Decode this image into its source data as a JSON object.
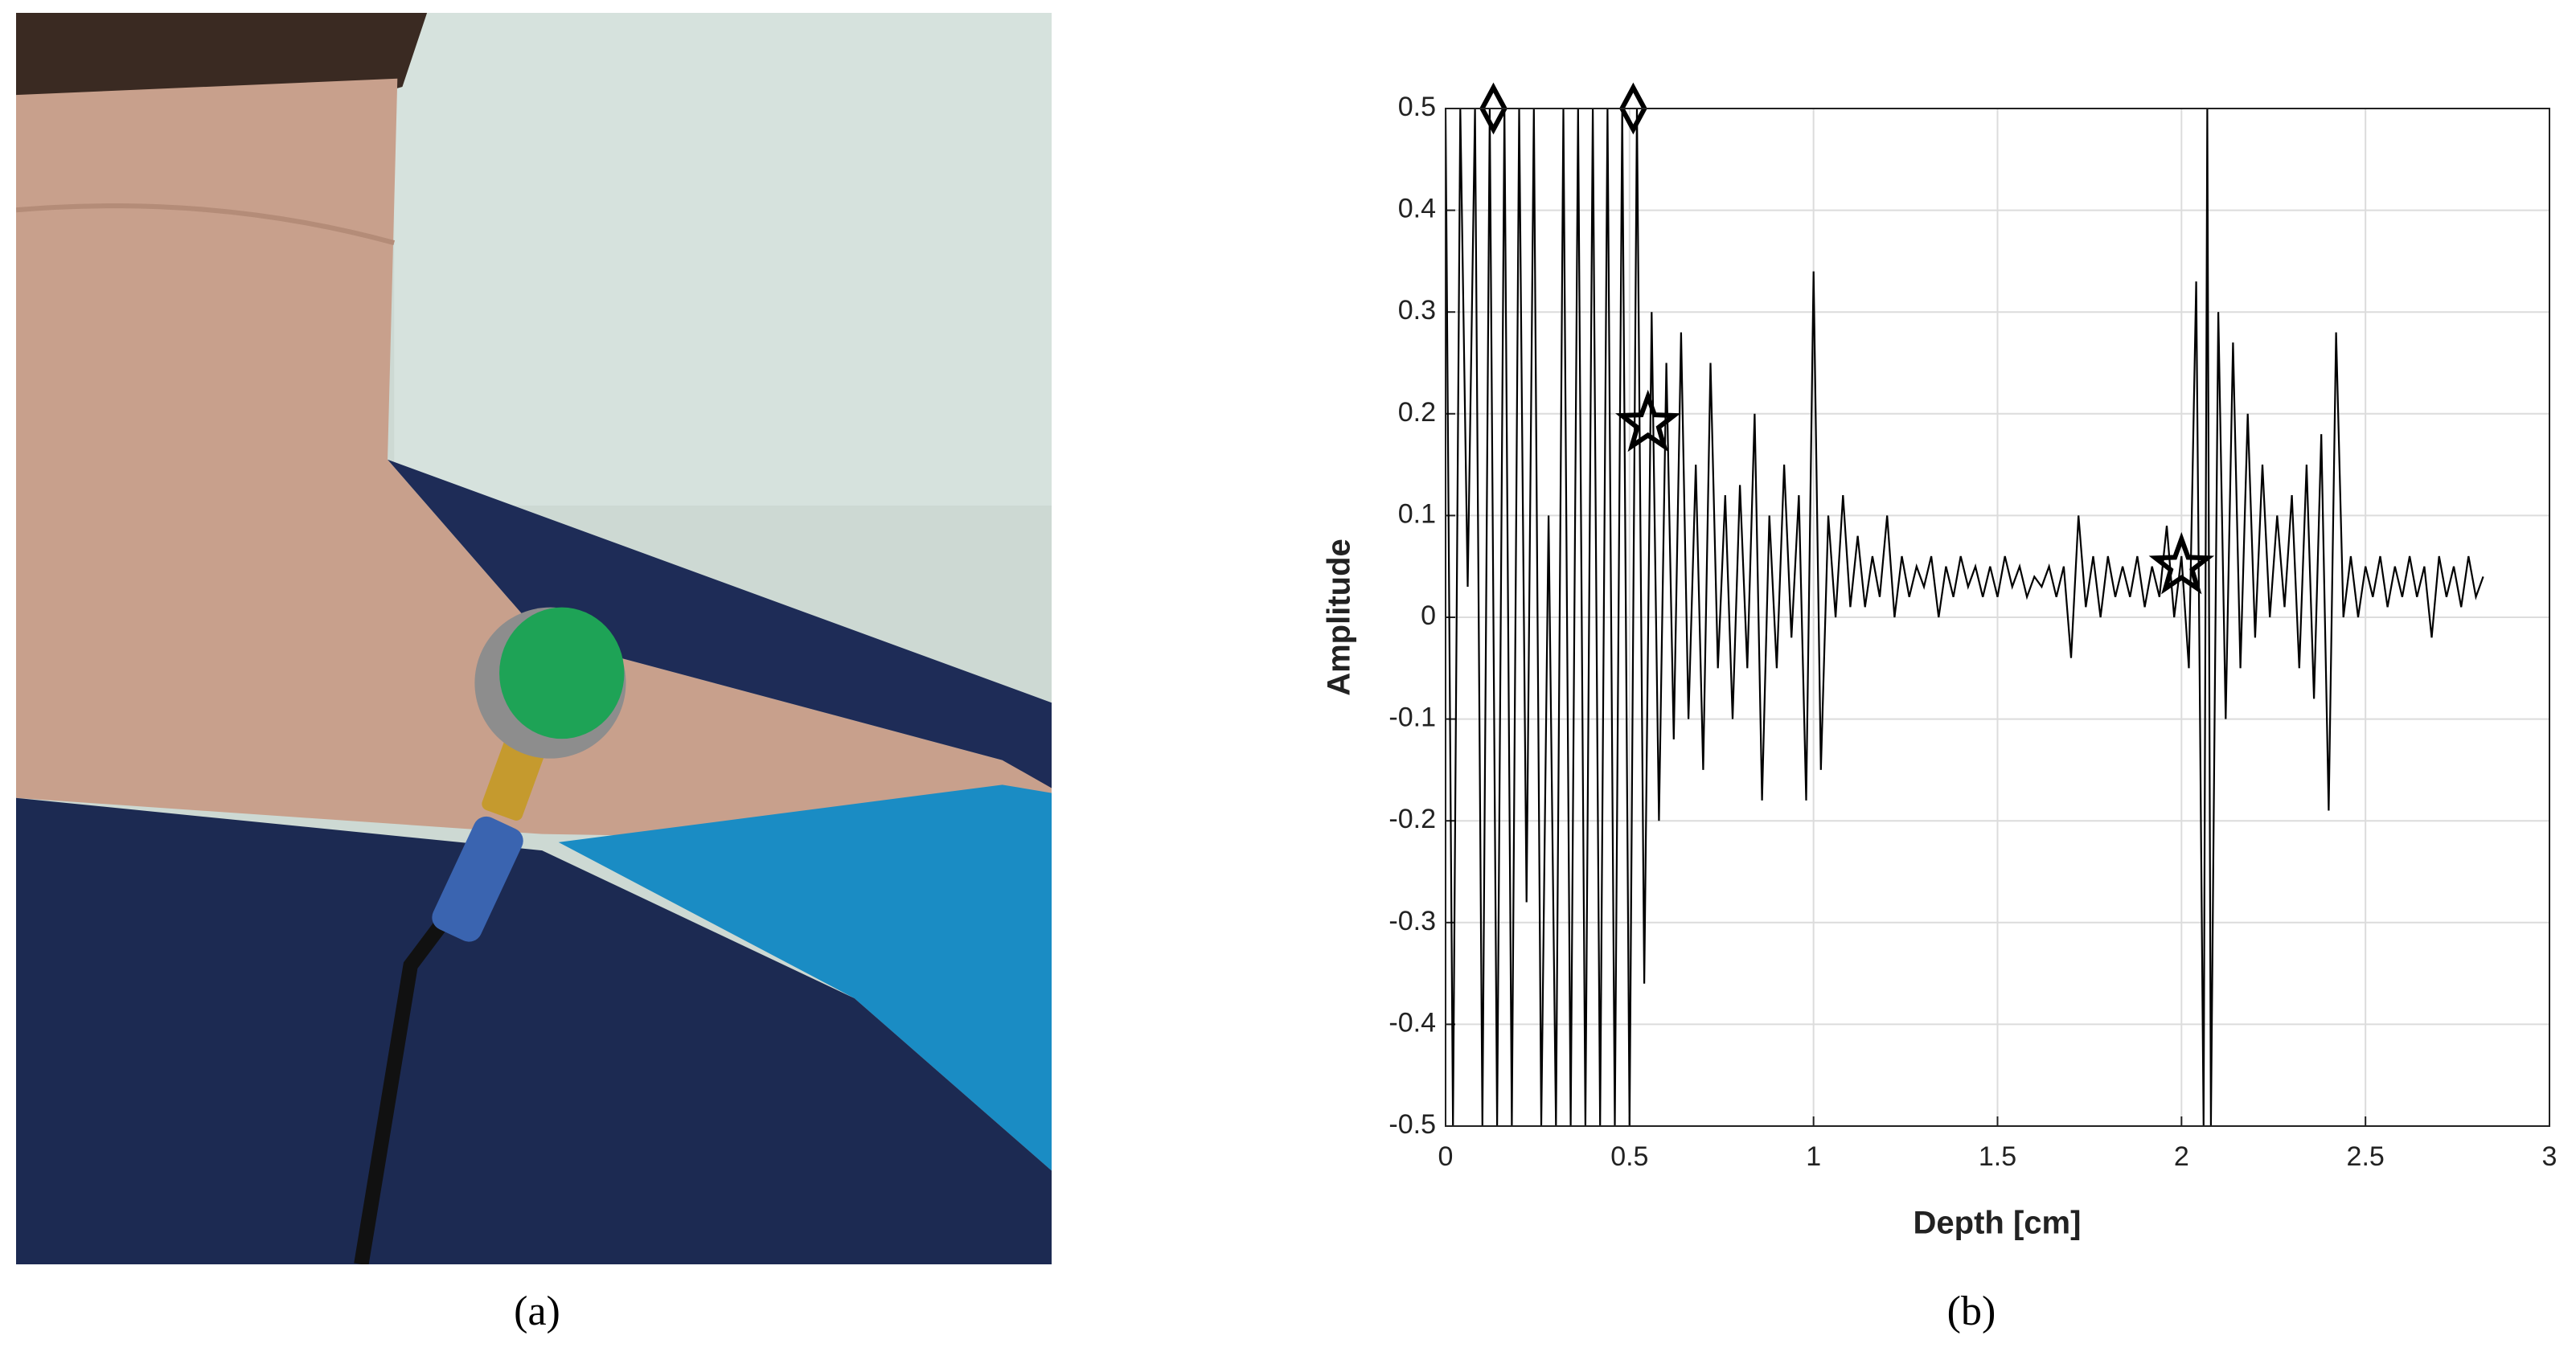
{
  "captions": [
    "(a)",
    "(b)"
  ],
  "chart_data": {
    "type": "line",
    "xlabel": "Depth [cm]",
    "ylabel": "Amplitude",
    "color": "#000000",
    "grid": true,
    "xlim": [
      0,
      3
    ],
    "ylim": [
      -0.5,
      0.5
    ],
    "xticks": [
      0,
      0.5,
      1,
      1.5,
      2,
      2.5,
      3
    ],
    "yticks": [
      -0.5,
      -0.4,
      -0.3,
      -0.2,
      -0.1,
      0,
      0.1,
      0.2,
      0.3,
      0.4,
      0.5
    ],
    "x": [
      0,
      0.02,
      0.04,
      0.06,
      0.08,
      0.1,
      0.12,
      0.14,
      0.16,
      0.18,
      0.2,
      0.22,
      0.24,
      0.26,
      0.28,
      0.3,
      0.32,
      0.34,
      0.36,
      0.38,
      0.4,
      0.42,
      0.44,
      0.46,
      0.48,
      0.5,
      0.52,
      0.54,
      0.56,
      0.58,
      0.6,
      0.62,
      0.64,
      0.66,
      0.68,
      0.7,
      0.72,
      0.74,
      0.76,
      0.78,
      0.8,
      0.82,
      0.84,
      0.86,
      0.88,
      0.9,
      0.92,
      0.94,
      0.96,
      0.98,
      1,
      1.02,
      1.04,
      1.06,
      1.08,
      1.1,
      1.12,
      1.14,
      1.16,
      1.18,
      1.2,
      1.22,
      1.24,
      1.26,
      1.28,
      1.3,
      1.32,
      1.34,
      1.36,
      1.38,
      1.4,
      1.42,
      1.44,
      1.46,
      1.48,
      1.5,
      1.52,
      1.54,
      1.56,
      1.58,
      1.6,
      1.62,
      1.64,
      1.66,
      1.68,
      1.7,
      1.72,
      1.74,
      1.76,
      1.78,
      1.8,
      1.82,
      1.84,
      1.86,
      1.88,
      1.9,
      1.92,
      1.94,
      1.96,
      1.98,
      2,
      2.02,
      2.04,
      2.06,
      2.07,
      2.08,
      2.1,
      2.12,
      2.14,
      2.16,
      2.18,
      2.2,
      2.22,
      2.24,
      2.26,
      2.28,
      2.3,
      2.32,
      2.34,
      2.36,
      2.38,
      2.4,
      2.42,
      2.44,
      2.46,
      2.48,
      2.5,
      2.52,
      2.54,
      2.56,
      2.58,
      2.6,
      2.62,
      2.64,
      2.66,
      2.68,
      2.7,
      2.72,
      2.74,
      2.76,
      2.78,
      2.8,
      2.82
    ],
    "values": [
      0.5,
      -0.5,
      0.5,
      0.03,
      0.5,
      -0.5,
      0.5,
      -0.5,
      0.5,
      -0.5,
      0.5,
      -0.28,
      0.5,
      -0.5,
      0.1,
      -0.5,
      0.5,
      -0.5,
      0.5,
      -0.5,
      0.5,
      -0.5,
      0.5,
      -0.5,
      0.5,
      -0.5,
      0.5,
      -0.36,
      0.3,
      -0.2,
      0.25,
      -0.12,
      0.28,
      -0.1,
      0.15,
      -0.15,
      0.25,
      -0.05,
      0.12,
      -0.1,
      0.13,
      -0.05,
      0.2,
      -0.18,
      0.1,
      -0.05,
      0.15,
      -0.02,
      0.12,
      -0.18,
      0.34,
      -0.15,
      0.1,
      0,
      0.12,
      0.01,
      0.08,
      0.01,
      0.06,
      0.02,
      0.1,
      0,
      0.06,
      0.02,
      0.05,
      0.03,
      0.06,
      0,
      0.05,
      0.02,
      0.06,
      0.03,
      0.05,
      0.02,
      0.05,
      0.02,
      0.06,
      0.03,
      0.05,
      0.02,
      0.04,
      0.03,
      0.05,
      0.02,
      0.05,
      -0.04,
      0.1,
      0.01,
      0.06,
      0,
      0.06,
      0.02,
      0.05,
      0.02,
      0.06,
      0.01,
      0.05,
      0.02,
      0.09,
      0,
      0.06,
      -0.05,
      0.33,
      -0.5,
      0.5,
      -0.5,
      0.3,
      -0.1,
      0.27,
      -0.05,
      0.2,
      -0.02,
      0.15,
      0,
      0.1,
      0.01,
      0.12,
      -0.05,
      0.15,
      -0.08,
      0.18,
      -0.19,
      0.28,
      0,
      0.06,
      0,
      0.05,
      0.02,
      0.06,
      0.01,
      0.05,
      0.02,
      0.06,
      0.02,
      0.05,
      -0.02,
      0.06,
      0.02,
      0.05,
      0.01,
      0.06,
      0.02,
      0.04
    ],
    "markers": [
      {
        "shape": "diamond",
        "x": [
          0.13,
          0.51
        ],
        "values": [
          0.5,
          0.5
        ]
      },
      {
        "shape": "star",
        "x": [
          0.55,
          2.0
        ],
        "values": [
          0.19,
          0.05
        ]
      }
    ]
  }
}
